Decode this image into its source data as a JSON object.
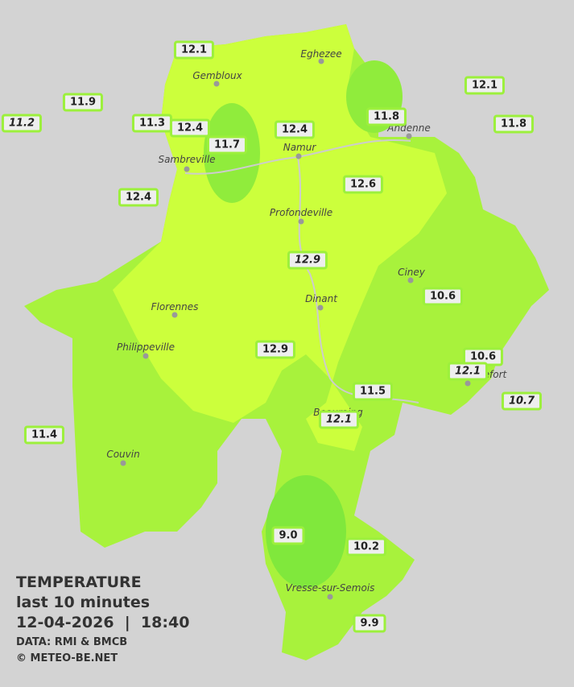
{
  "legend": {
    "title": "TEMPERATURE",
    "subtitle": "last 10 minutes",
    "datetime": "12-04-2026  |  18:40",
    "source": "DATA: RMI & BMCB",
    "copyright": "© METEO-BE.NET"
  },
  "cities": [
    "Eghezee",
    "Gembloux",
    "Andenne",
    "Namur",
    "Sambreville",
    "Profondeville",
    "Ciney",
    "Dinant",
    "Florennes",
    "Philippeville",
    "Rochefort",
    "Beauraing",
    "Couvin",
    "Vresse-sur-Semois"
  ],
  "stations": [
    "12.1",
    "11.9",
    "11.2",
    "11.3",
    "12.4",
    "11.7",
    "12.4",
    "11.8",
    "12.1",
    "11.8",
    "12.4",
    "12.6",
    "12.9",
    "10.6",
    "12.9",
    "10.6",
    "12.1",
    "11.5",
    "10.7",
    "12.1",
    "11.4",
    "9.0",
    "10.2",
    "9.9"
  ]
}
